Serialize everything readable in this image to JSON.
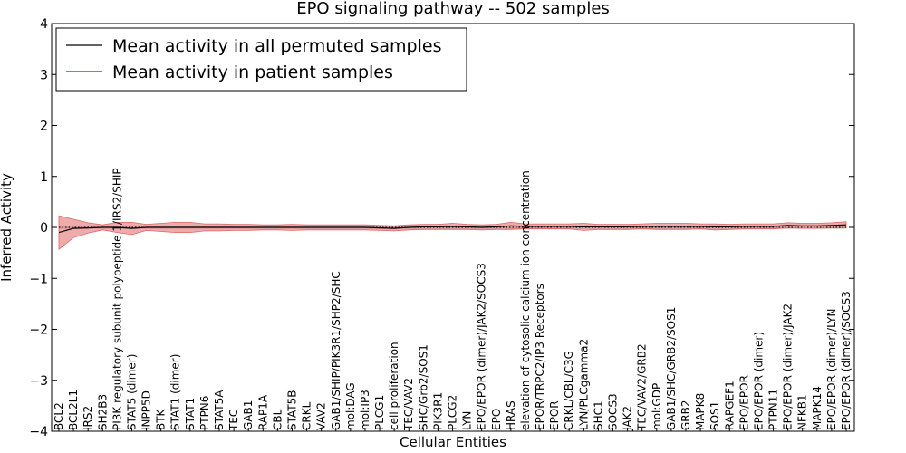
{
  "chart_data": {
    "type": "line",
    "title": "EPO signaling pathway -- 502 samples",
    "xlabel": "Cellular Entities",
    "ylabel": "Inferred Activity",
    "ylim": [
      -4,
      4
    ],
    "yticks": [
      -4,
      -3,
      -2,
      -1,
      0,
      1,
      2,
      3,
      4
    ],
    "grid": false,
    "legend_position": "top-left",
    "categories": [
      "BCL2",
      "BCL2L1",
      "IRS2",
      "SH2B3",
      "PI3K regulatory subunit polypeptide 1/IRS2/SHIP",
      "STAT5 (dimer)",
      "INPP5D",
      "BTK",
      "STAT1 (dimer)",
      "STAT1",
      "PTPN6",
      "STAT5A",
      "TEC",
      "GAB1",
      "RAP1A",
      "CBL",
      "STAT5B",
      "CRKL",
      "VAV2",
      "GAB1/SHIP/PIK3R1/SHP2/SHC",
      "mol:DAG",
      "mol:IP3",
      "PLCG1",
      "cell proliferation",
      "TEC/VAV2",
      "SHC/Grb2/SOS1",
      "PIK3R1",
      "PLCG2",
      "LYN",
      "EPO/EPOR (dimer)/JAK2/SOCS3",
      "EPO",
      "HRAS",
      "elevation of cytosolic calcium ion concentration",
      "EPOR/TRPC2/IP3 Receptors",
      "EPOR",
      "CRKL/CBL/C3G",
      "LYN/PLCgamma2",
      "SHC1",
      "SOCS3",
      "JAK2",
      "TEC/VAV2/GRB2",
      "mol:GDP",
      "GAB1/SHC/GRB2/SOS1",
      "GRB2",
      "MAPK8",
      "SOS1",
      "RAPGEF1",
      "EPO/EPOR",
      "EPO/EPOR (dimer)",
      "PTPN11",
      "EPO/EPOR (dimer)/JAK2",
      "NFKB1",
      "MAPK14",
      "EPO/EPOR (dimer)/LYN",
      "EPO/EPOR (dimer)/SOCS3"
    ],
    "series": [
      {
        "name": "Mean activity in all permuted samples",
        "color": "#000000",
        "style": "dotted",
        "values": [
          0,
          0,
          0,
          0,
          0,
          0,
          0,
          0,
          0,
          0,
          0,
          0,
          0,
          0,
          0,
          0,
          0,
          0,
          0,
          0,
          0,
          0,
          0,
          0,
          0,
          0,
          0,
          0,
          0,
          0,
          0,
          0,
          0,
          0,
          0,
          0,
          0,
          0,
          0,
          0,
          0,
          0,
          0,
          0,
          0,
          0,
          0,
          0,
          0,
          0,
          0,
          0,
          0,
          0,
          0
        ],
        "spread": 0.02,
        "band_color": "#bbbbbb"
      },
      {
        "name": "Mean activity in patient samples",
        "color": "#000000",
        "style": "solid",
        "values": [
          -0.1,
          -0.02,
          -0.01,
          0,
          0,
          -0.02,
          0,
          0,
          0,
          0,
          0,
          0,
          0,
          0,
          0,
          0,
          0,
          0,
          0,
          0,
          0,
          0,
          -0.01,
          -0.02,
          0,
          0.01,
          0.01,
          0.02,
          0.01,
          0,
          0.01,
          0.03,
          0.02,
          0.02,
          0.02,
          0.02,
          0.01,
          0.01,
          0.01,
          0.01,
          0.02,
          0.02,
          0.02,
          0.02,
          0.02,
          0.01,
          0.01,
          0.02,
          0.02,
          0.02,
          0.04,
          0.03,
          0.03,
          0.04,
          0.05
        ],
        "spread": [
          0.33,
          0.18,
          0.1,
          0.05,
          0.1,
          0.12,
          0.06,
          0.08,
          0.1,
          0.1,
          0.07,
          0.07,
          0.06,
          0.06,
          0.05,
          0.05,
          0.06,
          0.05,
          0.05,
          0.05,
          0.05,
          0.05,
          0.05,
          0.05,
          0.05,
          0.05,
          0.05,
          0.06,
          0.05,
          0.05,
          0.05,
          0.07,
          0.05,
          0.05,
          0.05,
          0.05,
          0.07,
          0.05,
          0.05,
          0.05,
          0.05,
          0.06,
          0.06,
          0.06,
          0.05,
          0.06,
          0.05,
          0.05,
          0.05,
          0.05,
          0.05,
          0.05,
          0.05,
          0.05,
          0.06
        ],
        "band_color": "#e06666"
      }
    ],
    "legend": [
      {
        "label": "Mean activity in all permuted samples",
        "color": "#000000"
      },
      {
        "label": "Mean activity in patient samples",
        "color": "#cc0000"
      }
    ]
  }
}
